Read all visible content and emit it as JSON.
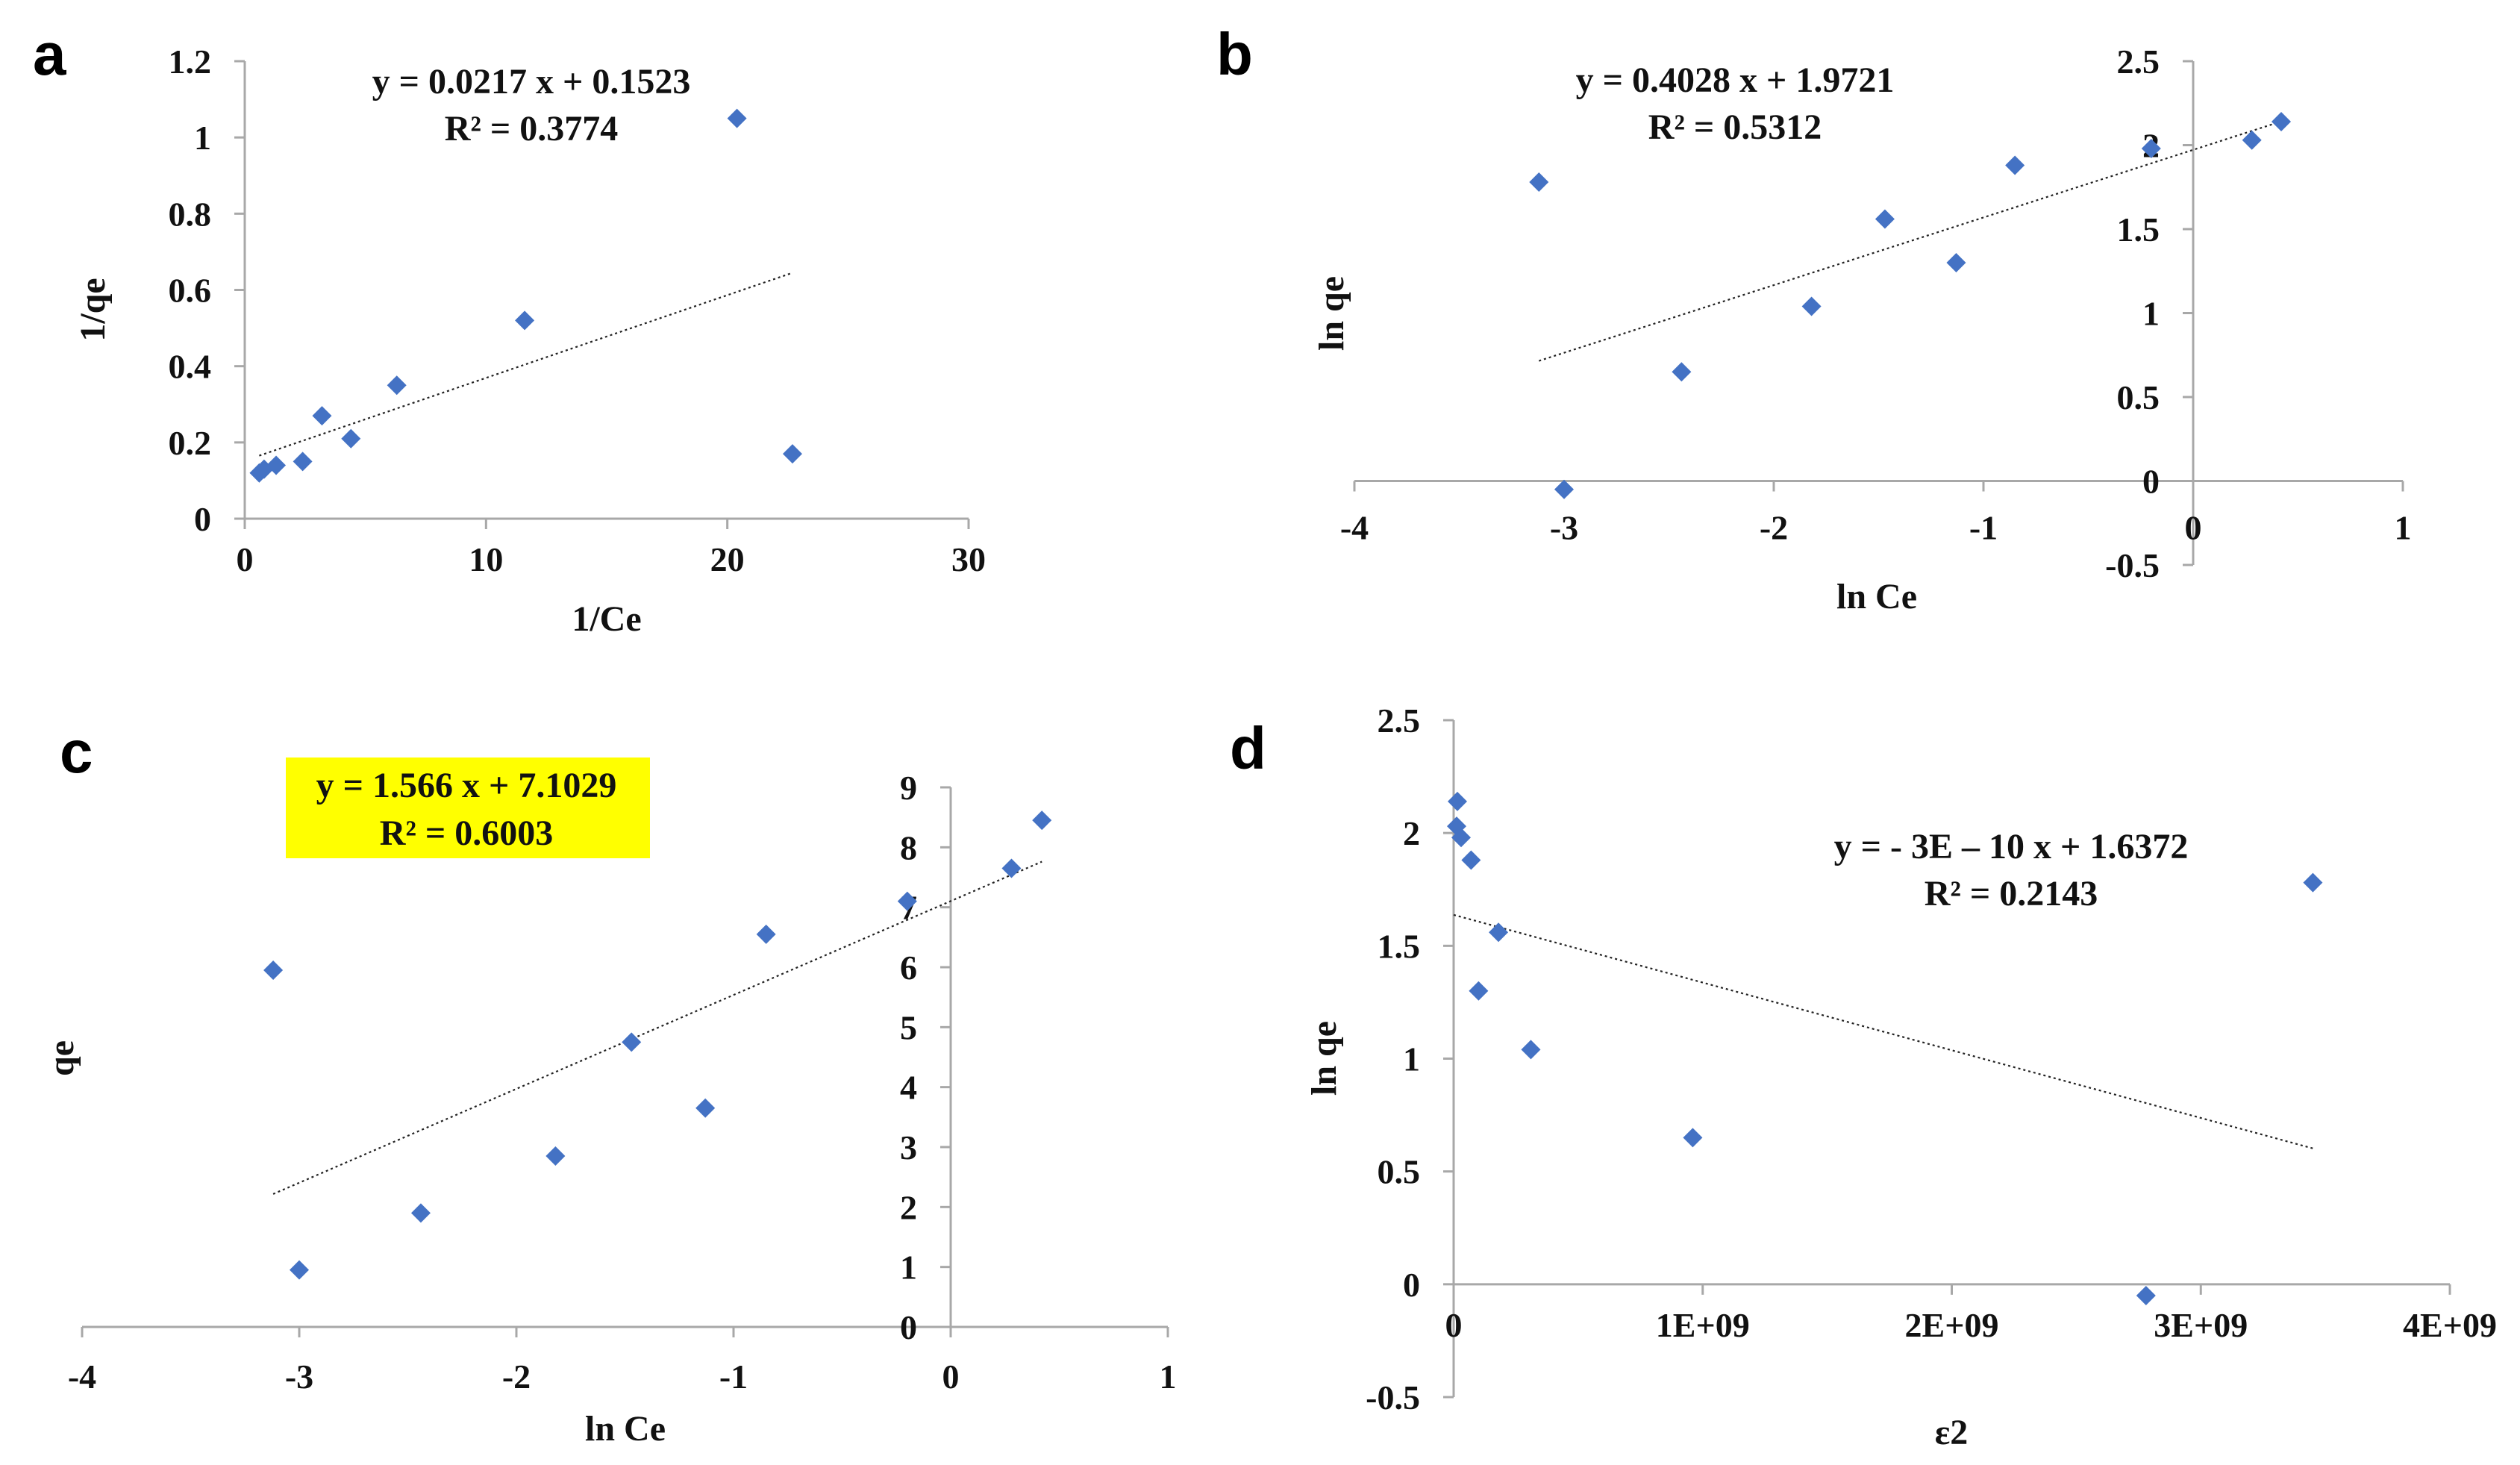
{
  "colors": {
    "marker": "#4472c4",
    "highlight": "#ffff00",
    "axis": "#a8a8a8",
    "text": "#111111"
  },
  "chart_data": [
    {
      "panel": "a",
      "type": "scatter",
      "xlabel": "1/Ce",
      "ylabel": "1/qe",
      "xlim": [
        0,
        30
      ],
      "ylim": [
        0,
        1.2
      ],
      "x_ticks": [
        "0",
        "10",
        "20",
        "30"
      ],
      "y_ticks": [
        "0",
        "0.2",
        "0.4",
        "0.6",
        "0.8",
        "1",
        "1.2"
      ],
      "points": [
        [
          0.6,
          0.12
        ],
        [
          0.8,
          0.13
        ],
        [
          1.3,
          0.14
        ],
        [
          2.4,
          0.15
        ],
        [
          3.2,
          0.27
        ],
        [
          4.4,
          0.21
        ],
        [
          6.3,
          0.35
        ],
        [
          11.6,
          0.52
        ],
        [
          20.4,
          1.05
        ],
        [
          22.7,
          0.17
        ]
      ],
      "trendline": {
        "slope": 0.0217,
        "intercept": 0.1523,
        "x_range": [
          0.6,
          22.7
        ]
      },
      "equation": "y = 0.0217 x + 0.1523",
      "r2": "R² = 0.3774"
    },
    {
      "panel": "b",
      "type": "scatter",
      "xlabel": "ln Ce",
      "ylabel": "ln qe",
      "xlim": [
        -4,
        1
      ],
      "ylim": [
        -0.5,
        2.5
      ],
      "x_ticks": [
        "-4",
        "-3",
        "-2",
        "-1",
        "0",
        "1"
      ],
      "y_ticks": [
        "-0.5",
        "0",
        "0.5",
        "1",
        "1.5",
        "2",
        "2.5"
      ],
      "points": [
        [
          -3.12,
          1.78
        ],
        [
          -3.0,
          -0.05
        ],
        [
          -2.44,
          0.65
        ],
        [
          -1.82,
          1.04
        ],
        [
          -1.47,
          1.56
        ],
        [
          -1.13,
          1.3
        ],
        [
          -0.85,
          1.88
        ],
        [
          -0.2,
          1.98
        ],
        [
          0.28,
          2.03
        ],
        [
          0.42,
          2.14
        ]
      ],
      "trendline": {
        "slope": 0.4028,
        "intercept": 1.9721,
        "x_range": [
          -3.12,
          0.42
        ]
      },
      "equation": "y = 0.4028 x + 1.9721",
      "r2": "R² = 0.5312"
    },
    {
      "panel": "c",
      "type": "scatter",
      "xlabel": "ln Ce",
      "ylabel": "qe",
      "xlim": [
        -4,
        1
      ],
      "ylim": [
        0,
        9
      ],
      "x_ticks": [
        "-4",
        "-3",
        "-2",
        "-1",
        "0",
        "1"
      ],
      "y_ticks": [
        "0",
        "1",
        "2",
        "3",
        "4",
        "5",
        "6",
        "7",
        "8",
        "9"
      ],
      "points": [
        [
          -3.12,
          5.95
        ],
        [
          -3.0,
          0.95
        ],
        [
          -2.44,
          1.9
        ],
        [
          -1.82,
          2.85
        ],
        [
          -1.47,
          4.75
        ],
        [
          -1.13,
          3.65
        ],
        [
          -0.85,
          6.55
        ],
        [
          -0.2,
          7.1
        ],
        [
          0.28,
          7.65
        ],
        [
          0.42,
          8.45
        ]
      ],
      "trendline": {
        "slope": 1.566,
        "intercept": 7.1029,
        "x_range": [
          -3.12,
          0.42
        ]
      },
      "equation": "y = 1.566 x + 7.1029",
      "r2": "R² = 0.6003"
    },
    {
      "panel": "d",
      "type": "scatter",
      "xlabel": "ε2",
      "ylabel": "ln qe",
      "xlim": [
        0,
        4000000000
      ],
      "ylim": [
        -0.5,
        2.5
      ],
      "x_ticks": [
        "0",
        "1E+09",
        "2E+09",
        "3E+09",
        "4E+09"
      ],
      "y_ticks": [
        "-0.5",
        "0",
        "0.5",
        "1",
        "1.5",
        "2",
        "2.5"
      ],
      "points": [
        [
          15000000,
          2.14
        ],
        [
          12000000,
          2.03
        ],
        [
          30000000,
          1.98
        ],
        [
          70000000,
          1.88
        ],
        [
          180000000,
          1.56
        ],
        [
          100000000,
          1.3
        ],
        [
          310000000,
          1.04
        ],
        [
          960000000,
          0.65
        ],
        [
          2780000000,
          -0.05
        ],
        [
          3450000000,
          1.78
        ]
      ],
      "trendline": {
        "slope": -3e-10,
        "intercept": 1.6372,
        "x_range": [
          0,
          3450000000
        ]
      },
      "equation": "y = - 3E – 10 x + 1.6372",
      "r2": "R² = 0.2143"
    }
  ]
}
